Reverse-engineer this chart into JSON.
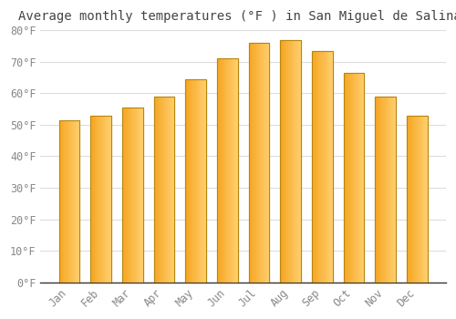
{
  "title": "Average monthly temperatures (°F ) in San Miguel de Salinas",
  "months": [
    "Jan",
    "Feb",
    "Mar",
    "Apr",
    "May",
    "Jun",
    "Jul",
    "Aug",
    "Sep",
    "Oct",
    "Nov",
    "Dec"
  ],
  "values": [
    51.5,
    53.0,
    55.5,
    59.0,
    64.5,
    71.0,
    76.0,
    77.0,
    73.5,
    66.5,
    59.0,
    53.0
  ],
  "bar_color_left": "#F5A623",
  "bar_color_right": "#FFD070",
  "bar_edge_color": "#B8860B",
  "ylim": [
    0,
    80
  ],
  "yticks": [
    0,
    10,
    20,
    30,
    40,
    50,
    60,
    70,
    80
  ],
  "ytick_labels": [
    "0°F",
    "10°F",
    "20°F",
    "30°F",
    "40°F",
    "50°F",
    "60°F",
    "70°F",
    "80°F"
  ],
  "background_color": "#ffffff",
  "grid_color": "#dddddd",
  "title_fontsize": 10,
  "tick_fontsize": 8.5,
  "tick_color": "#888888",
  "axis_color": "#333333"
}
